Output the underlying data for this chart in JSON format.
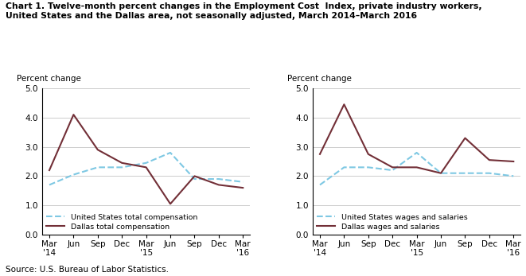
{
  "title_line1": "Chart 1. Twelve-month percent changes in the Employment Cost  Index, private industry workers,",
  "title_line2": "United States and the Dallas area, not seasonally adjusted, March 2014–March 2016",
  "ylabel": "Percent change",
  "source": "Source: U.S. Bureau of Labor Statistics.",
  "x_labels": [
    "Mar\n'14",
    "Jun",
    "Sep",
    "Dec",
    "Mar\n'15",
    "Jun",
    "Sep",
    "Dec",
    "Mar\n'16"
  ],
  "left": {
    "us_compensation": [
      1.7,
      2.05,
      2.3,
      2.3,
      2.45,
      2.8,
      1.9,
      1.9,
      1.8
    ],
    "dallas_compensation": [
      2.2,
      4.1,
      2.9,
      2.45,
      2.3,
      1.05,
      2.0,
      1.7,
      1.6
    ],
    "legend1": "United States total compensation",
    "legend2": "Dallas total compensation"
  },
  "right": {
    "us_wages": [
      1.7,
      2.3,
      2.3,
      2.2,
      2.8,
      2.1,
      2.1,
      2.1,
      2.0
    ],
    "dallas_wages": [
      2.75,
      4.45,
      2.75,
      2.3,
      2.3,
      2.1,
      3.3,
      2.55,
      2.5
    ],
    "legend1": "United States wages and salaries",
    "legend2": "Dallas wages and salaries"
  },
  "ylim": [
    0.0,
    5.0
  ],
  "yticks": [
    0.0,
    1.0,
    2.0,
    3.0,
    4.0,
    5.0
  ],
  "us_color": "#7ec8e3",
  "dallas_color": "#722F37",
  "bg_color": "#ffffff",
  "grid_color": "#cccccc"
}
